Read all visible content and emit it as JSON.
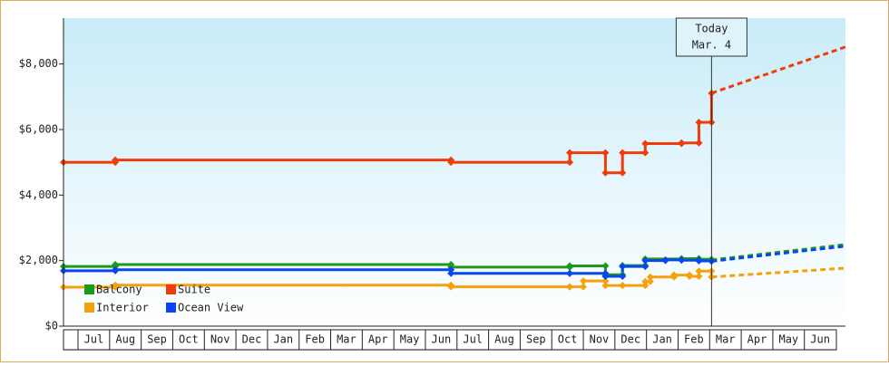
{
  "chart_data": {
    "type": "step-line",
    "categories": [
      "Jul",
      "Aug",
      "Sep",
      "Oct",
      "Nov",
      "Dec",
      "Jan",
      "Feb",
      "Mar",
      "Apr",
      "May",
      "Jun",
      "Jul",
      "Aug",
      "Sep",
      "Oct",
      "Nov",
      "Dec",
      "Jan",
      "Feb",
      "Mar",
      "Apr",
      "May",
      "Jun"
    ],
    "xlim": [
      -0.46,
      24.3
    ],
    "ylim": [
      0,
      9400
    ],
    "yticks": [
      {
        "value": 0,
        "label": "$0"
      },
      {
        "value": 2000,
        "label": "$2,000"
      },
      {
        "value": 4000,
        "label": "$4,000"
      },
      {
        "value": 6000,
        "label": "$6,000"
      },
      {
        "value": 8000,
        "label": "$8,000"
      }
    ],
    "annotation": {
      "x": 20.06,
      "lines": [
        "Today",
        "Mar. 4"
      ]
    },
    "series": [
      {
        "name": "Balcony",
        "color": "#1c9a1c",
        "x": [
          -0.46,
          1.18,
          11.81,
          15.57,
          16.7,
          17.24,
          17.96,
          19.11,
          19.66,
          20.06
        ],
        "values": [
          1820,
          1880,
          1800,
          1840,
          1570,
          1850,
          2050,
          2060,
          2040,
          2020
        ],
        "forecast_x": [
          20.06,
          24.3
        ],
        "forecast_values": [
          2020,
          2490
        ]
      },
      {
        "name": "Suite",
        "color": "#f03c0a",
        "x": [
          -0.46,
          1.18,
          11.81,
          15.57,
          16.7,
          17.24,
          17.96,
          19.11,
          19.66,
          20.06
        ],
        "values": [
          5000,
          5070,
          5000,
          5290,
          4680,
          5290,
          5570,
          5590,
          6220,
          7110
        ],
        "forecast_x": [
          20.06,
          24.3
        ],
        "forecast_values": [
          7110,
          8520
        ]
      },
      {
        "name": "Interior",
        "color": "#f5a10c",
        "x": [
          -0.46,
          1.18,
          11.81,
          15.57,
          16.0,
          16.7,
          17.24,
          17.96,
          18.12,
          18.87,
          19.36,
          19.66,
          20.06
        ],
        "values": [
          1190,
          1250,
          1200,
          1200,
          1380,
          1240,
          1240,
          1360,
          1500,
          1560,
          1520,
          1680,
          1500
        ],
        "forecast_x": [
          20.06,
          24.3
        ],
        "forecast_values": [
          1500,
          1770
        ]
      },
      {
        "name": "Ocean View",
        "color": "#0a46f0",
        "x": [
          -0.46,
          1.18,
          11.81,
          15.57,
          16.7,
          17.24,
          17.96,
          18.6,
          19.11,
          19.66,
          20.06
        ],
        "values": [
          1690,
          1720,
          1610,
          1610,
          1520,
          1820,
          2000,
          2020,
          2010,
          1990,
          1980
        ],
        "forecast_x": [
          20.06,
          24.3
        ],
        "forecast_values": [
          1980,
          2440
        ]
      }
    ]
  }
}
